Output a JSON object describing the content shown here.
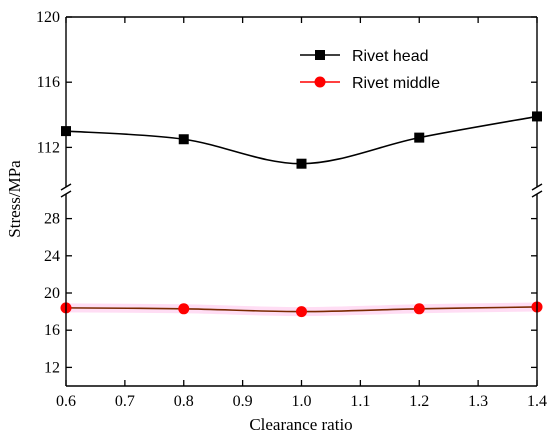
{
  "chart_data": {
    "type": "line",
    "xlabel": "Clearance ratio",
    "ylabel": "Stress/MPa",
    "xlim": [
      0.6,
      1.4
    ],
    "x_ticks": [
      "0.6",
      "0.7",
      "0.8",
      "0.9",
      "1.0",
      "1.1",
      "1.2",
      "1.3",
      "1.4"
    ],
    "y_axis_break": true,
    "y_segments": [
      {
        "range": [
          110,
          120
        ],
        "ticks": [
          "112",
          "116",
          "120"
        ]
      },
      {
        "range": [
          10,
          30
        ],
        "ticks": [
          "12",
          "16",
          "20",
          "24",
          "28"
        ]
      }
    ],
    "legend_position": "top-right",
    "grid": false,
    "series": [
      {
        "name": "Rivet head",
        "color": "#000000",
        "marker": "square",
        "x": [
          0.6,
          0.8,
          1.0,
          1.2,
          1.4
        ],
        "y": [
          113.0,
          112.5,
          111.0,
          112.6,
          113.9
        ]
      },
      {
        "name": "Rivet middle",
        "color": "#ff0000",
        "marker": "circle",
        "x": [
          0.6,
          0.8,
          1.0,
          1.2,
          1.4
        ],
        "y": [
          18.4,
          18.3,
          18.0,
          18.3,
          18.5
        ]
      }
    ]
  }
}
